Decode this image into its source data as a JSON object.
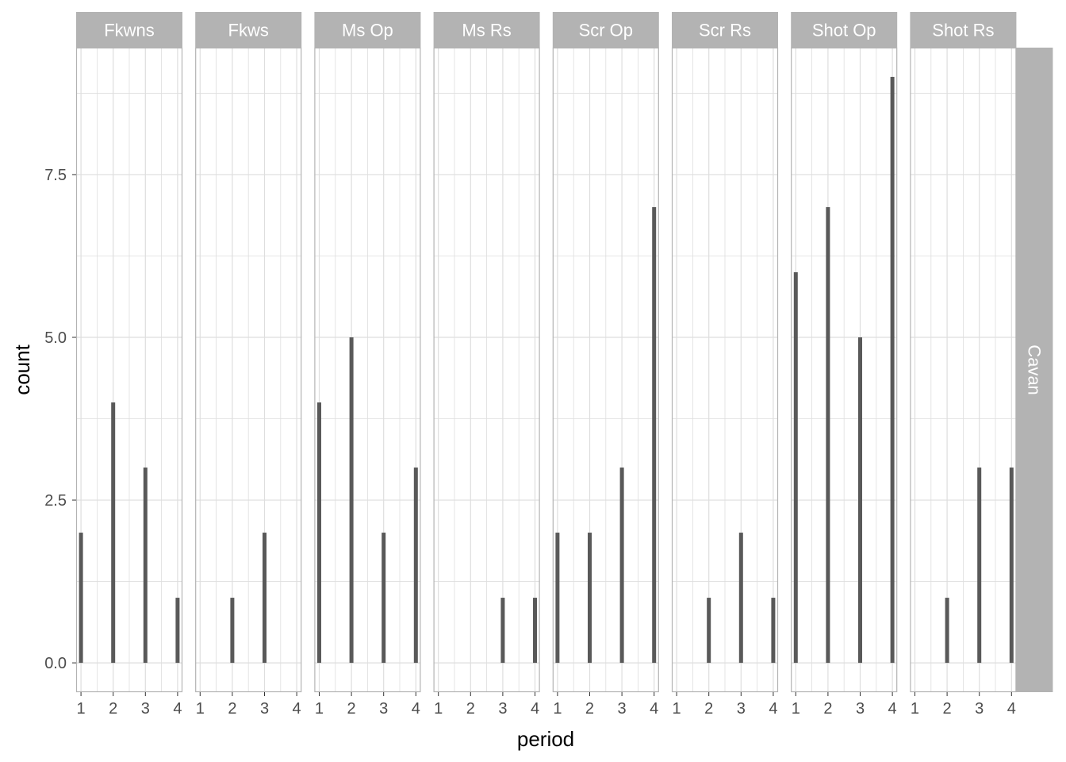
{
  "chart_data": {
    "type": "bar",
    "xlabel": "period",
    "ylabel": "count",
    "x_ticks": [
      "1",
      "2",
      "3",
      "4"
    ],
    "y_ticks": [
      "0.0",
      "2.5",
      "5.0",
      "7.5"
    ],
    "y_tick_values": [
      0,
      2.5,
      5,
      7.5
    ],
    "xlim": [
      0.85,
      4.15
    ],
    "ylim": [
      -0.45,
      9.45
    ],
    "grid": true,
    "row_strip": "Cavan",
    "facets": [
      {
        "label": "Fkwns",
        "x": [
          1,
          2,
          3,
          4
        ],
        "values": [
          2,
          4,
          3,
          1
        ]
      },
      {
        "label": "Fkws",
        "x": [
          2,
          3
        ],
        "values": [
          1,
          2
        ]
      },
      {
        "label": "Ms Op",
        "x": [
          1,
          2,
          3,
          4
        ],
        "values": [
          4,
          5,
          2,
          3
        ]
      },
      {
        "label": "Ms Rs",
        "x": [
          3,
          4
        ],
        "values": [
          1,
          1
        ]
      },
      {
        "label": "Scr Op",
        "x": [
          1,
          2,
          3,
          4
        ],
        "values": [
          2,
          2,
          3,
          7
        ]
      },
      {
        "label": "Scr Rs",
        "x": [
          2,
          3,
          4
        ],
        "values": [
          1,
          2,
          1
        ]
      },
      {
        "label": "Shot Op",
        "x": [
          1,
          2,
          3,
          4
        ],
        "values": [
          6,
          7,
          5,
          9
        ]
      },
      {
        "label": "Shot Rs",
        "x": [
          2,
          3,
          4
        ],
        "values": [
          1,
          3,
          3
        ]
      }
    ],
    "bar_color": "#595959",
    "strip_color": "#b3b3b3",
    "grid_color": "#dedede",
    "border_color": "#b3b3b3"
  }
}
